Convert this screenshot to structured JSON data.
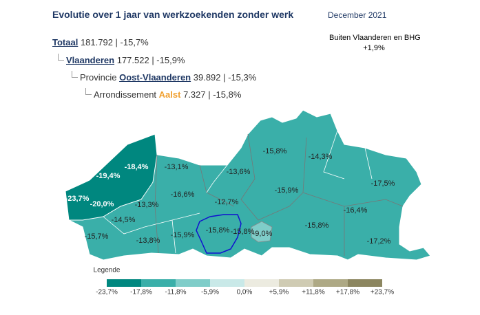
{
  "header": {
    "title": "Evolutie over 1 jaar van werkzoekenden zonder werk",
    "date": "December 2021"
  },
  "note": {
    "label": "Buiten Vlaanderen en BHG",
    "value": "+1,9%"
  },
  "breadcrumb": [
    {
      "label": "Totaal",
      "value": "181.792 | -15,7%"
    },
    {
      "label": "Vlaanderen",
      "value": "177.522 | -15,9%"
    },
    {
      "prefix": "Provincie",
      "label": "Oost-Vlaanderen",
      "value": "39.892 | -15,3%"
    },
    {
      "prefix": "Arrondissement",
      "label": "Aalst",
      "value": "7.327 | -15,8%"
    }
  ],
  "map": {
    "labels": [
      "-18,4%",
      "-19,4%",
      "-23,7%",
      "-20,0%",
      "-13,1%",
      "-13,6%",
      "-15,8%",
      "-14,3%",
      "-17,5%",
      "-16,6%",
      "-13,3%",
      "-12,7%",
      "-15,9%",
      "-16,4%",
      "-14,5%",
      "-15,7%",
      "-13,8%",
      "-15,9%",
      "-15,8%",
      "-15,8%",
      "-9,0%",
      "-15,8%",
      "-17,2%"
    ]
  },
  "legend": {
    "title": "Legende",
    "colors": [
      "#00877f",
      "#3aafa9",
      "#7fcdc9",
      "#c9e9e8",
      "#ecebe0",
      "#cfcbb3",
      "#aea985",
      "#8c8660"
    ],
    "ticks": [
      "-23,7%",
      "-17,8%",
      "-11,8%",
      "-5,9%",
      "0,0%",
      "+5,9%",
      "+11,8%",
      "+17,8%",
      "+23,7%"
    ]
  }
}
